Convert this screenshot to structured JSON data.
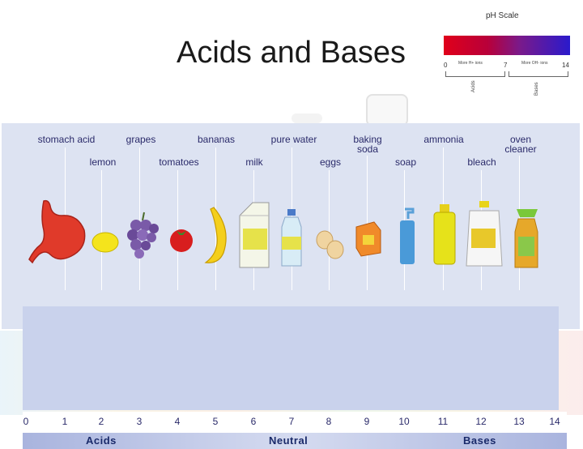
{
  "slide": {
    "title": "Acids and Bases"
  },
  "inset": {
    "title": "pH Scale",
    "n0": "0",
    "n7": "7",
    "n14": "14",
    "more_h": "More H+ ions",
    "more_oh": "More OH- ions",
    "acids": "Acids",
    "bases": "Bases"
  },
  "diagram": {
    "top_labels": [
      "stomach acid",
      "grapes",
      "bananas",
      "pure water",
      "baking soda",
      "ammonia",
      "oven cleaner"
    ],
    "bottom_labels": [
      "lemon",
      "tomatoes",
      "milk",
      "eggs",
      "soap",
      "bleach"
    ],
    "scale_numbers": [
      "0",
      "1",
      "2",
      "3",
      "4",
      "5",
      "6",
      "7",
      "8",
      "9",
      "10",
      "11",
      "12",
      "13",
      "14"
    ],
    "categories": {
      "acids": "Acids",
      "neutral": "Neutral",
      "bases": "Bases"
    }
  },
  "colors": {
    "acid_red": "#e0001a",
    "base_blue": "#2a1acc",
    "panel": "#dde3f2",
    "text": "#2a2a6a"
  }
}
